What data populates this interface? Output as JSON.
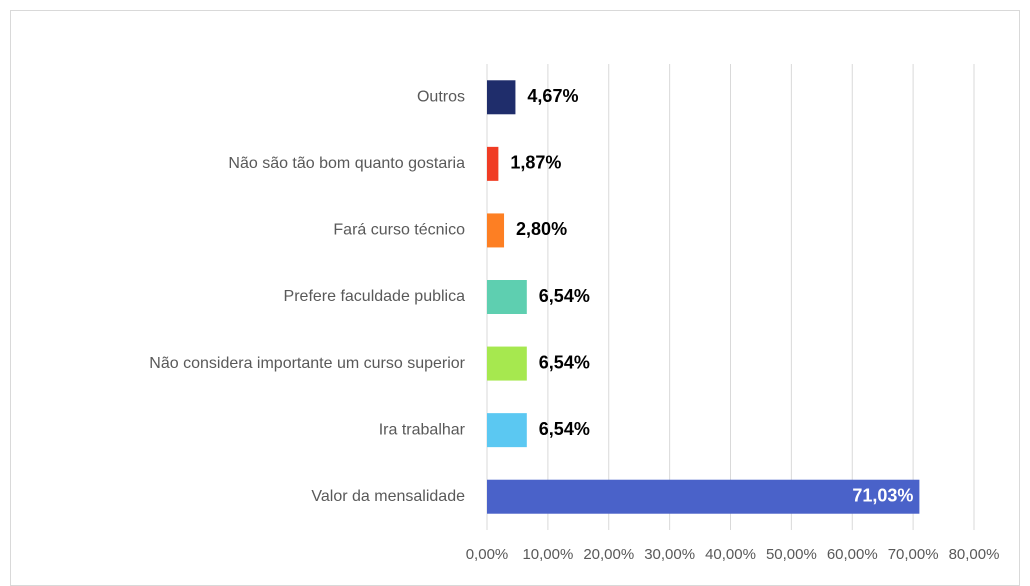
{
  "chart_data": {
    "type": "bar",
    "orientation": "horizontal",
    "categories": [
      "Outros",
      "Não são tão bom quanto gostaria",
      "Fará curso técnico",
      "Prefere faculdade publica",
      "Não considera importante um curso superior",
      "Ira trabalhar",
      "Valor da mensalidade"
    ],
    "values": [
      4.67,
      1.87,
      2.8,
      6.54,
      6.54,
      6.54,
      71.03
    ],
    "value_labels": [
      "4,67%",
      "1,87%",
      "2,80%",
      "6,54%",
      "6,54%",
      "6,54%",
      "71,03%"
    ],
    "colors": [
      "#1f2d6b",
      "#f03c24",
      "#fd7f23",
      "#5ecfb0",
      "#a6e84f",
      "#5bc8f2",
      "#4a62c9"
    ],
    "xlim": [
      0,
      80
    ],
    "xticks": [
      {
        "value": 0,
        "label": "0,00%"
      },
      {
        "value": 10,
        "label": "10,00%"
      },
      {
        "value": 20,
        "label": "20,00%"
      },
      {
        "value": 30,
        "label": "30,00%"
      },
      {
        "value": 40,
        "label": "40,00%"
      },
      {
        "value": 50,
        "label": "50,00%"
      },
      {
        "value": 60,
        "label": "60,00%"
      },
      {
        "value": 70,
        "label": "70,00%"
      },
      {
        "value": 80,
        "label": "80,00%"
      }
    ],
    "grid": true
  }
}
